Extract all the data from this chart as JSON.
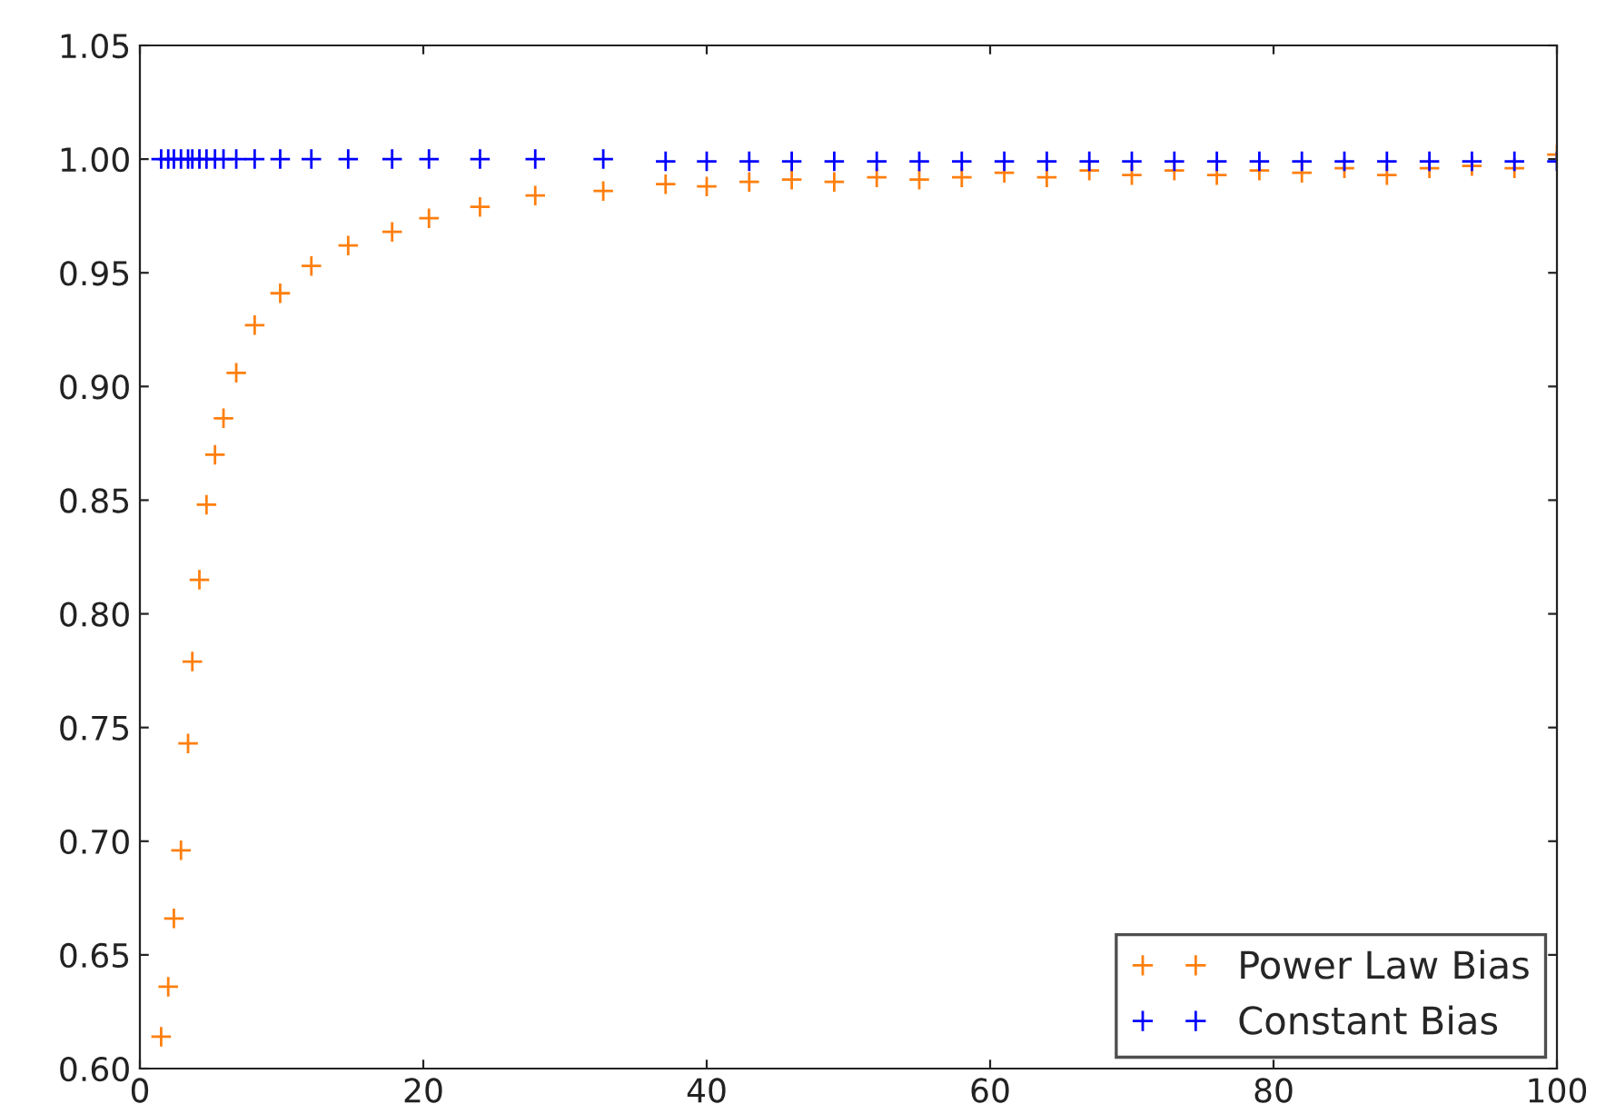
{
  "chart_data": {
    "type": "scatter",
    "xlim": [
      0,
      100
    ],
    "ylim": [
      0.6,
      1.05
    ],
    "xticks": [
      0,
      20,
      40,
      60,
      80,
      100
    ],
    "yticks": [
      {
        "value": 0.6,
        "label": "0.60"
      },
      {
        "value": 0.65,
        "label": "0.65"
      },
      {
        "value": 0.7,
        "label": "0.70"
      },
      {
        "value": 0.75,
        "label": "0.75"
      },
      {
        "value": 0.8,
        "label": "0.80"
      },
      {
        "value": 0.85,
        "label": "0.85"
      },
      {
        "value": 0.9,
        "label": "0.90"
      },
      {
        "value": 0.95,
        "label": "0.95"
      },
      {
        "value": 1.0,
        "label": "1.00"
      },
      {
        "value": 1.05,
        "label": "1.05"
      }
    ],
    "grid": false,
    "legend": "bottom right",
    "marker": "cross",
    "series": [
      {
        "name": "Power Law Bias",
        "color": "#ff7f0e",
        "x": [
          1.5,
          2,
          2.4,
          2.9,
          3.4,
          3.7,
          4.2,
          4.7,
          5.3,
          5.9,
          6.8,
          8.1,
          9.9,
          12.1,
          14.7,
          17.8,
          20.4,
          24,
          27.9,
          32.7,
          37.1,
          40,
          43,
          46,
          49,
          52,
          55,
          58,
          61,
          64,
          67,
          70,
          73,
          76,
          79,
          82,
          85,
          88,
          91,
          94,
          97,
          100
        ],
        "values": [
          0.614,
          0.636,
          0.666,
          0.696,
          0.743,
          0.779,
          0.815,
          0.848,
          0.87,
          0.886,
          0.906,
          0.927,
          0.941,
          0.953,
          0.962,
          0.968,
          0.974,
          0.979,
          0.984,
          0.986,
          0.989,
          0.988,
          0.99,
          0.991,
          0.99,
          0.992,
          0.991,
          0.992,
          0.994,
          0.992,
          0.995,
          0.993,
          0.995,
          0.993,
          0.995,
          0.994,
          0.996,
          0.993,
          0.996,
          0.997,
          0.996,
          1.002
        ]
      },
      {
        "name": "Constant Bias",
        "color": "#0000ff",
        "x": [
          1.5,
          2,
          2.4,
          2.9,
          3.4,
          3.7,
          4.2,
          4.7,
          5.3,
          5.9,
          6.8,
          8.1,
          9.9,
          12.1,
          14.7,
          17.8,
          20.4,
          24,
          27.9,
          32.7,
          37.1,
          40,
          43,
          46,
          49,
          52,
          55,
          58,
          61,
          64,
          67,
          70,
          73,
          76,
          79,
          82,
          85,
          88,
          91,
          94,
          97,
          100
        ],
        "values": [
          1.0,
          1.0,
          1.0,
          1.0,
          1.0,
          1.0,
          1.0,
          1.0,
          1.0,
          1.0,
          1.0,
          1.0,
          1.0,
          1.0,
          1.0,
          1.0,
          1.0,
          1.0,
          1.0,
          1.0,
          0.999,
          0.999,
          0.999,
          0.999,
          0.999,
          0.999,
          0.999,
          0.999,
          0.999,
          0.999,
          0.999,
          0.999,
          0.999,
          0.999,
          0.999,
          0.999,
          0.999,
          0.999,
          0.999,
          0.999,
          0.999,
          0.999
        ]
      }
    ]
  }
}
